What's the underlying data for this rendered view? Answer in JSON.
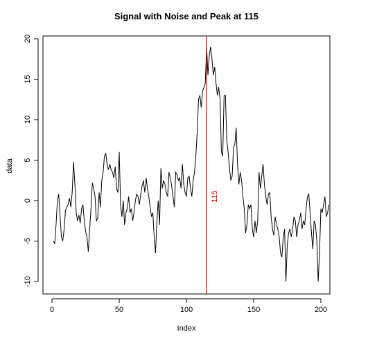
{
  "chart_data": {
    "type": "line",
    "title": "Signal with Noise and Peak at 115",
    "xlabel": "Index",
    "ylabel": "data",
    "xlim": [
      1,
      200
    ],
    "ylim": [
      -11,
      20
    ],
    "x_ticks": [
      0,
      50,
      100,
      150,
      200
    ],
    "y_ticks": [
      -10,
      -5,
      0,
      5,
      10,
      15,
      20
    ],
    "line_color": "#000000",
    "vline": {
      "x": 115,
      "color": "#e00000",
      "label": "115"
    },
    "series": [
      {
        "values": [
          -5.0,
          -5.3,
          -3.0,
          0.0,
          0.8,
          -2.0,
          -4.5,
          -5.0,
          -3.5,
          -1.2,
          -0.8,
          -0.5,
          0.3,
          -0.8,
          1.0,
          4.8,
          2.0,
          -1.5,
          -2.5,
          -1.8,
          -2.8,
          -1.0,
          -0.5,
          -2.5,
          -3.8,
          -4.5,
          -6.3,
          -3.5,
          -1.0,
          2.2,
          1.5,
          0.5,
          -2.5,
          -2.2,
          1.0,
          -0.8,
          2.5,
          3.5,
          5.5,
          5.8,
          4.5,
          3.8,
          4.5,
          3.8,
          3.5,
          2.8,
          4.2,
          1.5,
          1.0,
          6.0,
          -0.5,
          -2.0,
          0.0,
          -3.0,
          -1.5,
          -1.0,
          0.5,
          -1.5,
          -1.0,
          -2.5,
          -1.5,
          0.0,
          0.8,
          0.5,
          -0.5,
          0.8,
          1.8,
          2.5,
          1.0,
          2.8,
          1.5,
          0.5,
          -0.8,
          -2.0,
          -1.5,
          -4.5,
          -6.5,
          -2.5,
          0.0,
          -3.0,
          4.0,
          1.5,
          2.5,
          2.0,
          1.0,
          0.5,
          3.5,
          2.8,
          1.8,
          0.5,
          -0.8,
          3.5,
          3.2,
          2.5,
          2.8,
          1.5,
          4.5,
          2.0,
          1.0,
          0.5,
          2.8,
          3.0,
          1.5,
          0.5,
          2.5,
          3.5,
          5.5,
          8.5,
          12.5,
          13.0,
          11.5,
          13.5,
          14.0,
          14.5,
          19.0,
          15.5,
          18.0,
          19.0,
          17.5,
          15.5,
          16.5,
          14.5,
          13.0,
          14.0,
          12.5,
          6.0,
          5.5,
          13.0,
          13.0,
          7.5,
          6.0,
          4.0,
          2.5,
          3.0,
          6.5,
          7.0,
          9.0,
          4.5,
          2.0,
          3.5,
          2.5,
          0.5,
          -1.0,
          -4.0,
          -3.0,
          -0.5,
          -1.0,
          -0.5,
          -3.5,
          -4.5,
          -2.5,
          -4.0,
          -2.5,
          3.5,
          1.5,
          3.0,
          4.5,
          2.0,
          0.5,
          -0.5,
          0.8,
          1.0,
          -2.0,
          -3.5,
          -4.3,
          -2.0,
          -3.0,
          -3.5,
          -4.5,
          -6.5,
          -7.0,
          -4.5,
          -3.5,
          -10.0,
          -5.5,
          -4.0,
          -3.5,
          -4.5,
          -3.5,
          -2.0,
          -2.5,
          -4.5,
          -3.0,
          -2.5,
          -1.5,
          -3.5,
          -2.5,
          -3.0,
          -1.0,
          0.5,
          0.8,
          -1.5,
          -4.0,
          -6.0,
          -2.5,
          -3.0,
          -5.0,
          -10.0,
          -6.5,
          -1.0,
          -1.5,
          -0.5,
          0.5,
          -2.0,
          -1.5,
          -0.5
        ]
      }
    ]
  }
}
